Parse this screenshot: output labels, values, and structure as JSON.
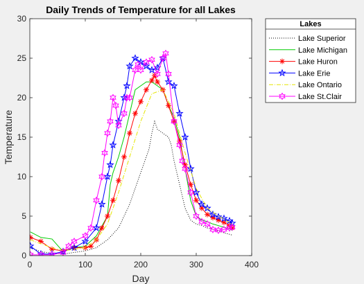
{
  "chart_data": {
    "type": "line",
    "title": "Daily Trends of Temperature for all Lakes",
    "xlabel": "Day",
    "ylabel": "Temperature",
    "xlim": [
      0,
      400
    ],
    "ylim": [
      0,
      30
    ],
    "xticks": [
      0,
      100,
      200,
      300,
      400
    ],
    "yticks": [
      0,
      5,
      10,
      15,
      20,
      25,
      30
    ],
    "grid": false,
    "legend": {
      "title": "Lakes",
      "placement": "outside-top-right"
    },
    "series": [
      {
        "name": "Lake Superior",
        "color": "#000000",
        "style": "dotted",
        "marker": "none",
        "x": [
          1,
          20,
          40,
          60,
          80,
          100,
          120,
          140,
          160,
          170,
          180,
          190,
          200,
          210,
          215,
          220,
          225,
          230,
          240,
          250,
          255,
          260,
          270,
          280,
          290,
          300,
          310,
          320,
          330,
          340,
          350,
          360,
          365
        ],
        "y": [
          1.0,
          0.5,
          0.3,
          0.2,
          0.4,
          0.6,
          1.0,
          2.0,
          3.5,
          5.0,
          6.5,
          8.5,
          10.5,
          12.5,
          13.5,
          15.5,
          17.0,
          16.0,
          15.5,
          15.0,
          14.0,
          12.0,
          9.0,
          6.0,
          4.5,
          4.0,
          3.8,
          3.5,
          3.3,
          3.1,
          2.9,
          2.7,
          2.6
        ]
      },
      {
        "name": "Lake Michigan",
        "color": "#00cc00",
        "style": "solid",
        "marker": "none",
        "x": [
          1,
          20,
          40,
          60,
          80,
          100,
          120,
          140,
          145,
          150,
          160,
          170,
          180,
          190,
          200,
          210,
          220,
          230,
          240,
          250,
          260,
          270,
          280,
          290,
          300,
          310,
          320,
          330,
          340,
          350,
          360,
          365
        ],
        "y": [
          3.0,
          2.3,
          2.1,
          0.5,
          1.0,
          1.2,
          2.5,
          5.0,
          9.0,
          10.5,
          12.5,
          15.0,
          18.0,
          21.0,
          21.5,
          22.0,
          22.0,
          21.5,
          21.0,
          19.0,
          17.5,
          15.0,
          11.0,
          7.0,
          5.0,
          4.5,
          4.3,
          4.0,
          3.8,
          3.6,
          3.4,
          3.2
        ]
      },
      {
        "name": "Lake Huron",
        "color": "#ff0000",
        "style": "solid",
        "marker": "asterisk",
        "x": [
          1,
          20,
          40,
          60,
          80,
          100,
          110,
          120,
          130,
          140,
          150,
          160,
          170,
          180,
          190,
          200,
          210,
          220,
          225,
          230,
          240,
          250,
          260,
          270,
          280,
          290,
          300,
          310,
          320,
          330,
          340,
          350,
          360,
          365
        ],
        "y": [
          2.3,
          1.8,
          0.8,
          0.6,
          1.0,
          1.0,
          1.2,
          2.0,
          3.5,
          5.0,
          7.0,
          9.5,
          12.5,
          15.5,
          18.0,
          19.5,
          21.0,
          22.2,
          22.8,
          22.0,
          21.0,
          19.0,
          17.0,
          14.5,
          11.5,
          9.0,
          7.0,
          6.0,
          5.2,
          4.8,
          4.5,
          4.2,
          3.8,
          3.5
        ]
      },
      {
        "name": "Lake Erie",
        "color": "#0000ff",
        "style": "solid",
        "marker": "pentagram",
        "x": [
          1,
          20,
          40,
          60,
          80,
          100,
          120,
          130,
          140,
          145,
          150,
          160,
          170,
          175,
          180,
          190,
          200,
          210,
          220,
          230,
          240,
          250,
          260,
          270,
          280,
          290,
          300,
          310,
          320,
          330,
          340,
          350,
          360,
          365
        ],
        "y": [
          1.2,
          0.2,
          0.2,
          0.5,
          1.0,
          1.8,
          3.5,
          6.5,
          10.0,
          11.5,
          14.0,
          17.0,
          20.0,
          21.5,
          24.0,
          25.0,
          24.5,
          24.0,
          23.5,
          23.8,
          25.0,
          22.0,
          21.5,
          18.0,
          15.0,
          11.0,
          8.0,
          6.5,
          6.0,
          5.2,
          4.9,
          4.7,
          4.4,
          4.1
        ]
      },
      {
        "name": "Lake Ontario",
        "color": "#e6e600",
        "style": "dashdot",
        "marker": "none",
        "x": [
          1,
          20,
          40,
          60,
          80,
          100,
          120,
          140,
          160,
          180,
          200,
          220,
          240,
          260,
          280,
          300,
          320,
          340,
          360,
          365
        ],
        "y": [
          2.0,
          1.5,
          1.0,
          0.6,
          0.8,
          1.0,
          2.0,
          4.0,
          8.0,
          12.5,
          17.0,
          20.5,
          21.0,
          18.0,
          13.0,
          8.5,
          6.0,
          5.0,
          4.2,
          3.9
        ]
      },
      {
        "name": "Lake St.Clair",
        "color": "#ff00ff",
        "style": "solid",
        "marker": "hexagram",
        "x": [
          1,
          20,
          40,
          60,
          70,
          80,
          100,
          110,
          120,
          130,
          135,
          140,
          145,
          150,
          155,
          160,
          170,
          175,
          180,
          190,
          195,
          200,
          210,
          220,
          230,
          240,
          245,
          250,
          260,
          270,
          275,
          280,
          290,
          300,
          310,
          320,
          330,
          340,
          350,
          360,
          365
        ],
        "y": [
          0.1,
          0.1,
          0.1,
          0.4,
          1.2,
          1.8,
          2.5,
          3.5,
          7.0,
          10.0,
          13.0,
          15.5,
          17.0,
          20.0,
          19.0,
          16.5,
          18.0,
          20.0,
          20.0,
          23.5,
          24.2,
          23.5,
          24.5,
          24.8,
          23.0,
          25.0,
          25.6,
          23.0,
          17.0,
          14.0,
          12.0,
          11.0,
          8.0,
          5.0,
          4.3,
          4.0,
          3.3,
          3.2,
          3.3,
          3.5,
          3.6
        ]
      }
    ]
  }
}
